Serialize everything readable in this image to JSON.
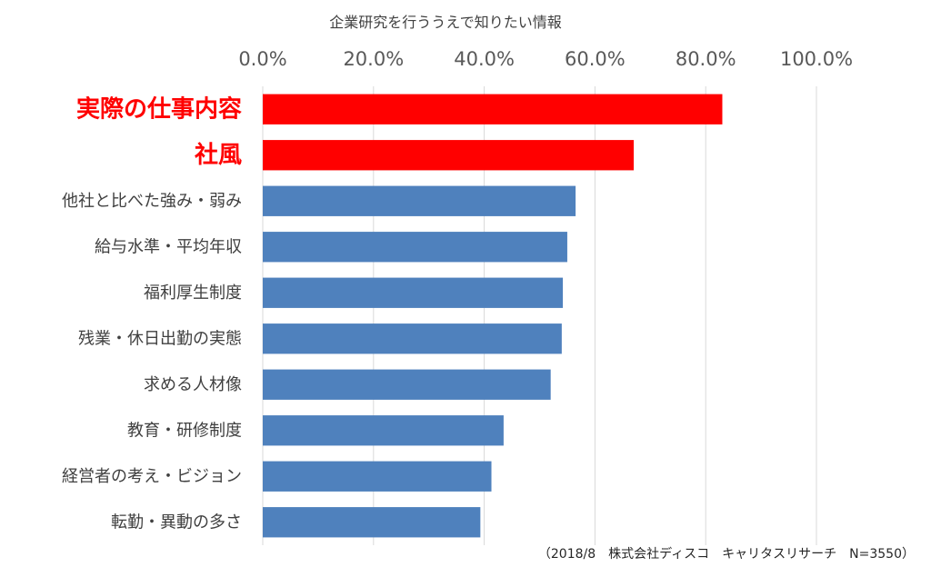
{
  "chart_data": {
    "type": "bar",
    "orientation": "horizontal",
    "title": "企業研究を行ううえで知りたい情報",
    "xlabel": "",
    "ylabel": "",
    "x_ticks": [
      "0.0%",
      "20.0%",
      "40.0%",
      "60.0%",
      "80.0%",
      "100.0%"
    ],
    "xlim": [
      0,
      100
    ],
    "grid": true,
    "x_axis_position": "top",
    "categories": [
      "実際の仕事内容",
      "社風",
      "他社と比べた強み・弱み",
      "給与水準・平均年収",
      "福利厚生制度",
      "残業・休日出勤の実態",
      "求める人材像",
      "教育・研修制度",
      "経営者の考え・ビジョン",
      "転勤・異動の多さ"
    ],
    "values": [
      83.0,
      67.0,
      56.5,
      55.0,
      54.2,
      54.0,
      52.0,
      43.5,
      41.3,
      39.3
    ],
    "highlight": [
      true,
      true,
      false,
      false,
      false,
      false,
      false,
      false,
      false,
      false
    ],
    "colors": {
      "highlight": "#ff0000",
      "default": "#4f81bd",
      "highlight_label": "#ff0000"
    },
    "source_note": "（2018/8　株式会社ディスコ　キャリタスリサーチ　N=3550）"
  }
}
